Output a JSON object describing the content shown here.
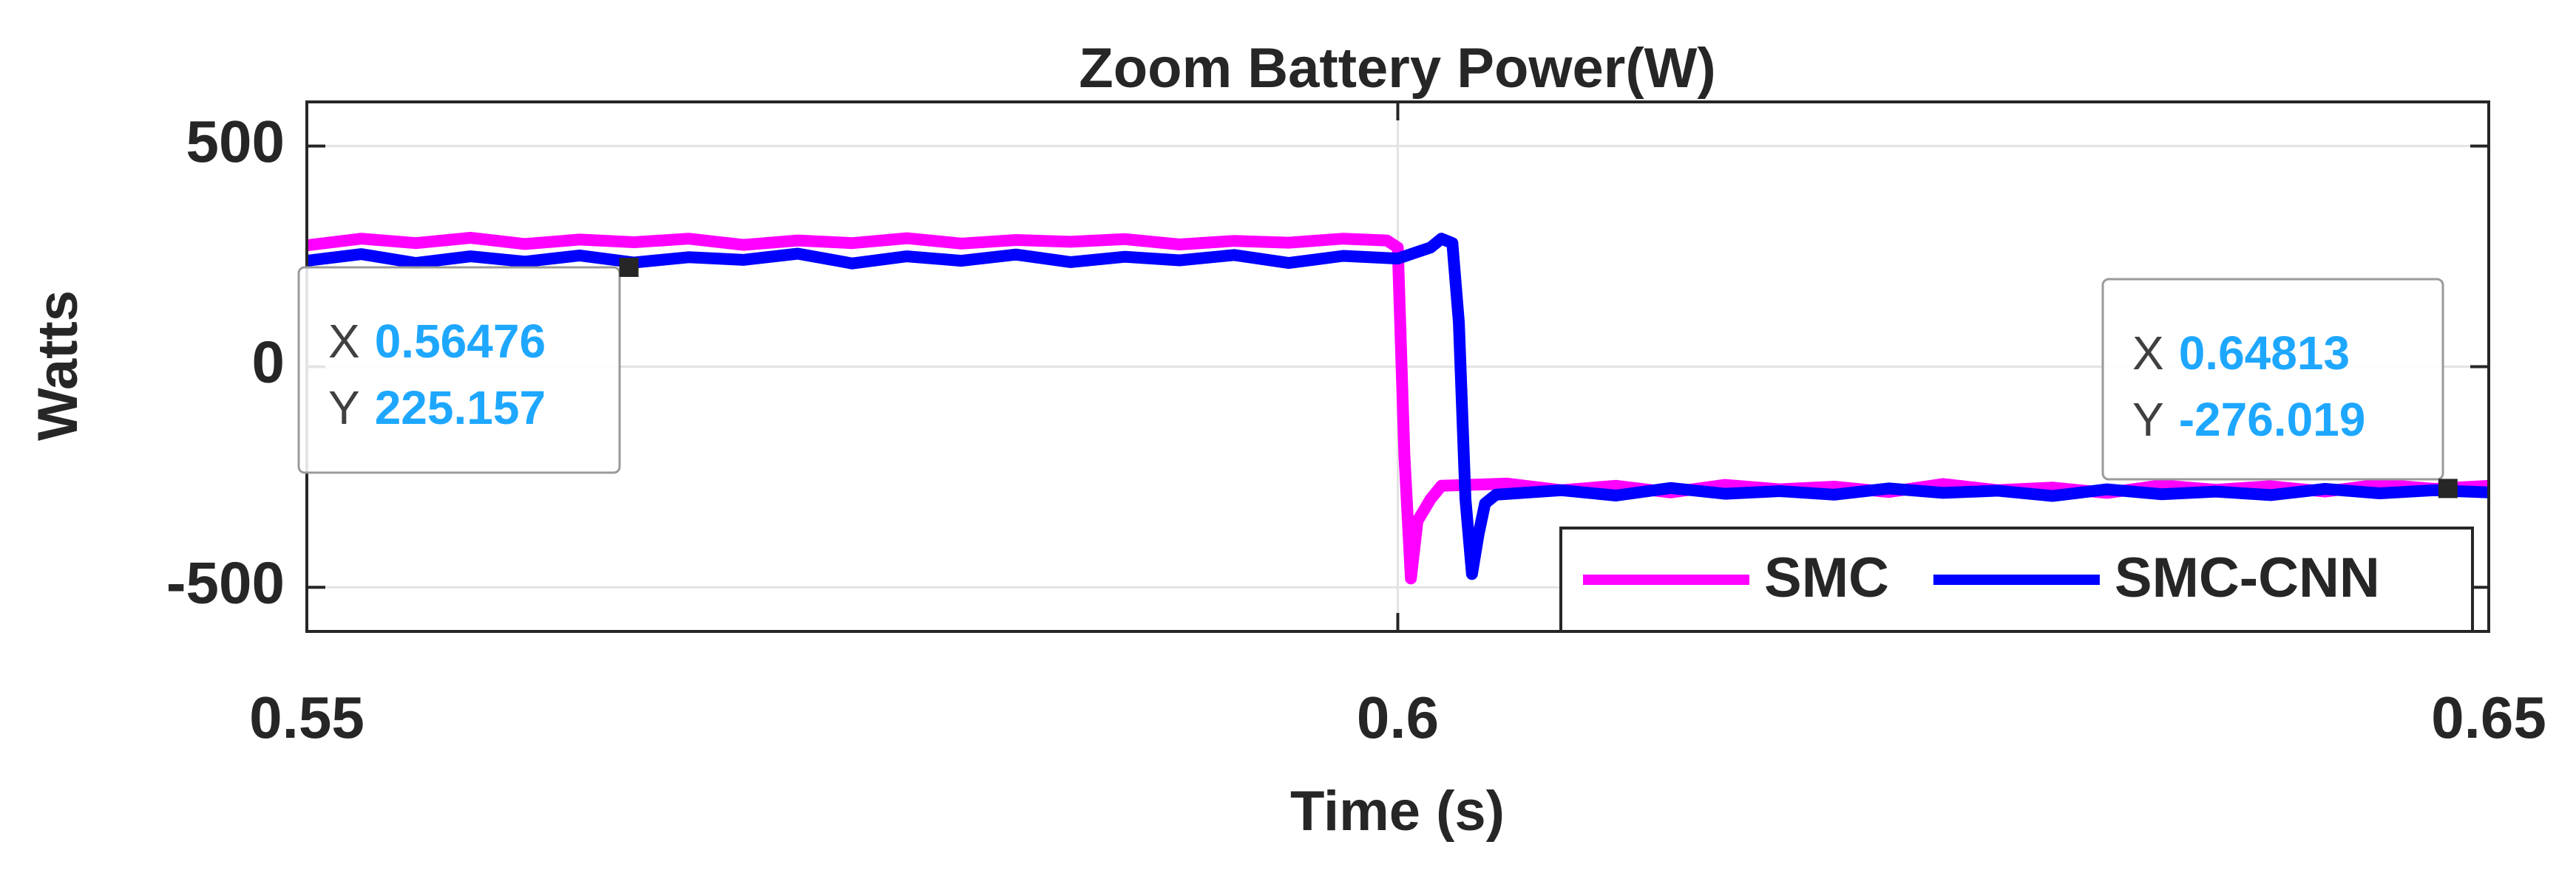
{
  "chart_data": {
    "type": "line",
    "title": "Zoom Battery Power(W)",
    "xlabel": "Time (s)",
    "ylabel": "Watts",
    "xlim": [
      0.55,
      0.65
    ],
    "xticks": [
      0.55,
      0.6,
      0.65
    ],
    "ylim": [
      -600,
      600
    ],
    "yticks": [
      -500,
      0,
      500
    ],
    "grid": true,
    "legend": "southeast",
    "series": [
      {
        "name": "SMC",
        "color": "#ff00ff",
        "x": [
          0.55,
          0.5525,
          0.555,
          0.5575,
          0.56,
          0.5625,
          0.565,
          0.5675,
          0.57,
          0.5725,
          0.575,
          0.5775,
          0.58,
          0.5825,
          0.585,
          0.5875,
          0.59,
          0.5925,
          0.595,
          0.5975,
          0.5995,
          0.6,
          0.6003,
          0.6006,
          0.6009,
          0.6015,
          0.602,
          0.605,
          0.6075,
          0.61,
          0.6125,
          0.615,
          0.6175,
          0.62,
          0.6225,
          0.625,
          0.6275,
          0.63,
          0.6325,
          0.635,
          0.6375,
          0.64,
          0.6425,
          0.645,
          0.6475,
          0.65
        ],
        "values": [
          275,
          290,
          280,
          292,
          278,
          288,
          282,
          290,
          276,
          286,
          280,
          291,
          279,
          287,
          283,
          289,
          277,
          285,
          281,
          290,
          286,
          270,
          -200,
          -480,
          -350,
          -300,
          -270,
          -265,
          -280,
          -270,
          -285,
          -268,
          -278,
          -272,
          -284,
          -266,
          -280,
          -274,
          -286,
          -269,
          -279,
          -271,
          -283,
          -267,
          -277,
          -270
        ]
      },
      {
        "name": "SMC-CNN",
        "color": "#0000ff",
        "x": [
          0.55,
          0.5525,
          0.555,
          0.5575,
          0.56,
          0.5625,
          0.565,
          0.5675,
          0.57,
          0.5725,
          0.575,
          0.5775,
          0.58,
          0.5825,
          0.585,
          0.5875,
          0.59,
          0.5925,
          0.595,
          0.5975,
          0.6,
          0.6015,
          0.602,
          0.6025,
          0.6028,
          0.6031,
          0.6034,
          0.6037,
          0.604,
          0.6045,
          0.6075,
          0.61,
          0.6125,
          0.615,
          0.6175,
          0.62,
          0.6225,
          0.625,
          0.6275,
          0.63,
          0.6325,
          0.635,
          0.6375,
          0.64,
          0.6425,
          0.645,
          0.6475,
          0.65
        ],
        "values": [
          240,
          255,
          235,
          250,
          238,
          252,
          236,
          248,
          242,
          256,
          234,
          250,
          240,
          254,
          237,
          249,
          241,
          253,
          235,
          251,
          245,
          270,
          290,
          280,
          100,
          -300,
          -470,
          -380,
          -310,
          -290,
          -280,
          -292,
          -275,
          -288,
          -282,
          -290,
          -276,
          -286,
          -281,
          -293,
          -278,
          -289,
          -283,
          -291,
          -277,
          -287,
          -280,
          -285
        ]
      }
    ],
    "datatips": [
      {
        "x_label": "X",
        "x": 0.56476,
        "y_label": "Y",
        "y": 225.157
      },
      {
        "x_label": "X",
        "x": 0.64813,
        "y_label": "Y",
        "y": -276.019
      }
    ]
  }
}
